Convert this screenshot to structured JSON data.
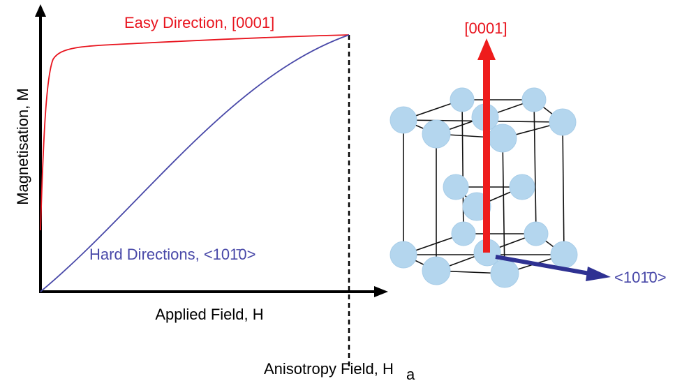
{
  "graph": {
    "y_axis_label": "Magnetisation, M",
    "x_axis_label": "Applied Field, H",
    "easy_label": "Easy Direction, [0001]",
    "hard_label": "Hard Directions, <101̄0>",
    "anisotropy_label": "Anisotropy Field, H",
    "anisotropy_subscript": "a"
  },
  "lattice": {
    "c_axis_label": "[0001]",
    "a_axis_label": "<101̄0>"
  }
}
